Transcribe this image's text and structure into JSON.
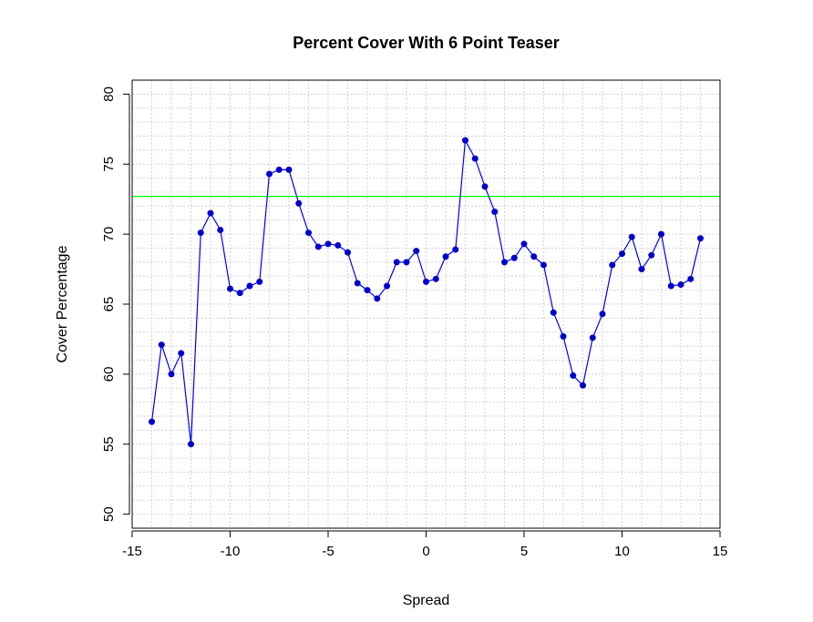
{
  "chart_data": {
    "type": "line",
    "title": "Percent Cover With 6 Point Teaser",
    "xlabel": "Spread",
    "ylabel": "Cover Percentage",
    "xlim": [
      -15,
      15
    ],
    "ylim": [
      49,
      81
    ],
    "xticks": [
      -15,
      -10,
      -5,
      0,
      5,
      10,
      15
    ],
    "yticks": [
      50,
      55,
      60,
      65,
      70,
      75,
      80
    ],
    "grid": true,
    "grid_minor_step": 1,
    "line_color": "#0000ff",
    "point_color": "#0000cd",
    "reference_line": {
      "y": 72.7,
      "color": "#00ff00"
    },
    "series": [
      {
        "x": [
          -14,
          -13.5,
          -13,
          -12.5,
          -12,
          -11.5,
          -11,
          -10.5,
          -10,
          -9.5,
          -9,
          -8.5,
          -8,
          -7.5,
          -7,
          -6.5,
          -6,
          -5.5,
          -5,
          -4.5,
          -4,
          -3.5,
          -3,
          -2.5,
          -2,
          -1.5,
          -1,
          -0.5,
          0,
          0.5,
          1,
          1.5,
          2,
          2.5,
          3,
          3.5,
          4,
          4.5,
          5,
          5.5,
          6,
          6.5,
          7,
          7.5,
          8,
          8.5,
          9,
          9.5,
          10,
          10.5,
          11,
          11.5,
          12,
          12.5,
          13,
          13.5,
          14
        ],
        "values": [
          56.6,
          62.1,
          60.0,
          61.5,
          55.0,
          70.1,
          71.5,
          70.3,
          66.1,
          65.8,
          66.3,
          66.6,
          74.3,
          74.6,
          74.6,
          72.2,
          70.1,
          69.1,
          69.3,
          69.2,
          68.7,
          66.5,
          66.0,
          65.4,
          66.3,
          68.0,
          68.0,
          68.8,
          66.6,
          66.8,
          68.4,
          68.9,
          76.7,
          75.4,
          73.4,
          71.6,
          68.0,
          68.3,
          69.3,
          68.4,
          67.8,
          64.4,
          62.7,
          59.9,
          59.2,
          62.6,
          64.3,
          67.8,
          68.6,
          69.8,
          67.5,
          68.5,
          70.0,
          66.3,
          66.4,
          66.8,
          69.7
        ]
      }
    ]
  }
}
